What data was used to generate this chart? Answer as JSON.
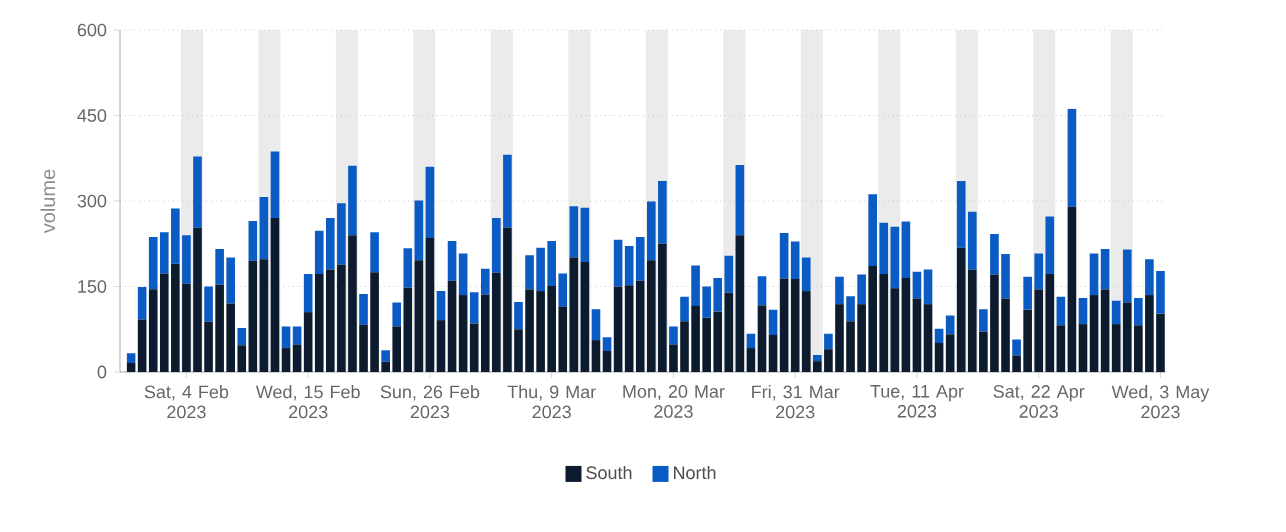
{
  "chart_data": {
    "type": "bar",
    "stacked": true,
    "ylabel": "volume",
    "x": [
      "2023-01-30",
      "2023-01-31",
      "2023-02-01",
      "2023-02-02",
      "2023-02-03",
      "2023-02-04",
      "2023-02-05",
      "2023-02-06",
      "2023-02-07",
      "2023-02-08",
      "2023-02-09",
      "2023-02-10",
      "2023-02-11",
      "2023-02-12",
      "2023-02-13",
      "2023-02-14",
      "2023-02-15",
      "2023-02-16",
      "2023-02-17",
      "2023-02-18",
      "2023-02-19",
      "2023-02-20",
      "2023-02-21",
      "2023-02-22",
      "2023-02-23",
      "2023-02-24",
      "2023-02-25",
      "2023-02-26",
      "2023-02-27",
      "2023-02-28",
      "2023-03-01",
      "2023-03-02",
      "2023-03-03",
      "2023-03-04",
      "2023-03-05",
      "2023-03-06",
      "2023-03-07",
      "2023-03-08",
      "2023-03-09",
      "2023-03-10",
      "2023-03-11",
      "2023-03-12",
      "2023-03-13",
      "2023-03-14",
      "2023-03-15",
      "2023-03-16",
      "2023-03-17",
      "2023-03-18",
      "2023-03-19",
      "2023-03-20",
      "2023-03-21",
      "2023-03-22",
      "2023-03-23",
      "2023-03-24",
      "2023-03-25",
      "2023-03-26",
      "2023-03-27",
      "2023-03-28",
      "2023-03-29",
      "2023-03-30",
      "2023-03-31",
      "2023-04-01",
      "2023-04-02",
      "2023-04-03",
      "2023-04-04",
      "2023-04-05",
      "2023-04-06",
      "2023-04-07",
      "2023-04-08",
      "2023-04-09",
      "2023-04-10",
      "2023-04-11",
      "2023-04-12",
      "2023-04-13",
      "2023-04-14",
      "2023-04-15",
      "2023-04-16",
      "2023-04-17",
      "2023-04-18",
      "2023-04-19",
      "2023-04-20",
      "2023-04-21",
      "2023-04-22",
      "2023-04-23",
      "2023-04-24",
      "2023-04-25",
      "2023-04-26",
      "2023-04-27",
      "2023-04-28",
      "2023-04-29",
      "2023-04-30",
      "2023-05-01",
      "2023-05-02",
      "2023-05-03"
    ],
    "series": [
      {
        "name": "South",
        "color": "#0d1b2e",
        "values": [
          16,
          92,
          145,
          173,
          190,
          155,
          253,
          88,
          153,
          120,
          47,
          195,
          198,
          270,
          42,
          48,
          105,
          172,
          180,
          188,
          240,
          83,
          175,
          18,
          80,
          148,
          196,
          235,
          91,
          160,
          135,
          85,
          136,
          174,
          253,
          75,
          145,
          142,
          151,
          115,
          201,
          193,
          56,
          37,
          150,
          152,
          160,
          196,
          225,
          48,
          89,
          116,
          95,
          106,
          139,
          240,
          42,
          117,
          65,
          164,
          163,
          142,
          19,
          40,
          119,
          89,
          119,
          186,
          172,
          147,
          165,
          129,
          119,
          51,
          66,
          218,
          180,
          71,
          171,
          129,
          29,
          109,
          145,
          172,
          82,
          290,
          84,
          135,
          145,
          84,
          122,
          82,
          135,
          102
        ]
      },
      {
        "name": "North",
        "color": "#0a5bc4",
        "values": [
          17,
          57,
          92,
          72,
          97,
          85,
          125,
          62,
          63,
          81,
          30,
          70,
          109,
          117,
          38,
          32,
          67,
          76,
          90,
          108,
          122,
          54,
          70,
          20,
          42,
          69,
          105,
          125,
          51,
          70,
          73,
          55,
          45,
          96,
          128,
          48,
          60,
          76,
          79,
          58,
          90,
          95,
          54,
          24,
          82,
          69,
          77,
          103,
          110,
          32,
          43,
          71,
          55,
          59,
          65,
          123,
          25,
          51,
          44,
          80,
          66,
          59,
          11,
          27,
          48,
          44,
          52,
          126,
          90,
          108,
          99,
          47,
          61,
          25,
          33,
          117,
          101,
          39,
          71,
          78,
          28,
          58,
          63,
          101,
          50,
          172,
          46,
          73,
          71,
          41,
          93,
          48,
          63,
          75
        ]
      }
    ],
    "xlim": [
      "2023-01-29",
      "2023-05-03T12:00"
    ],
    "xticks": [
      {
        "value": "2023-02-04",
        "label": "Sat, 4 Feb\n2023"
      },
      {
        "value": "2023-02-15",
        "label": "Wed, 15 Feb\n2023"
      },
      {
        "value": "2023-02-26",
        "label": "Sun, 26 Feb\n2023"
      },
      {
        "value": "2023-03-09",
        "label": "Thu, 9 Mar\n2023"
      },
      {
        "value": "2023-03-20",
        "label": "Mon, 20 Mar\n2023"
      },
      {
        "value": "2023-03-31",
        "label": "Fri, 31 Mar\n2023"
      },
      {
        "value": "2023-04-11",
        "label": "Tue, 11 Apr\n2023"
      },
      {
        "value": "2023-04-22",
        "label": "Sat, 22 Apr\n2023"
      },
      {
        "value": "2023-05-03",
        "label": "Wed, 3 May\n2023"
      }
    ],
    "ylim": [
      0,
      600
    ],
    "yticks": [
      0,
      150,
      300,
      450,
      600
    ],
    "grid": "y",
    "legend": "bottom",
    "bands": [
      {
        "axis": "x",
        "from": "2023-02-03T12:00",
        "to": "2023-02-05T12:00",
        "color": "#ebebeb"
      },
      {
        "axis": "x",
        "from": "2023-02-10T12:00",
        "to": "2023-02-12T12:00",
        "color": "#ebebeb"
      },
      {
        "axis": "x",
        "from": "2023-02-17T12:00",
        "to": "2023-02-19T12:00",
        "color": "#ebebeb"
      },
      {
        "axis": "x",
        "from": "2023-02-24T12:00",
        "to": "2023-02-26T12:00",
        "color": "#ebebeb"
      },
      {
        "axis": "x",
        "from": "2023-03-03T12:00",
        "to": "2023-03-05T12:00",
        "color": "#ebebeb"
      },
      {
        "axis": "x",
        "from": "2023-03-10T12:00",
        "to": "2023-03-12T12:00",
        "color": "#ebebeb"
      },
      {
        "axis": "x",
        "from": "2023-03-17T12:00",
        "to": "2023-03-19T12:00",
        "color": "#ebebeb"
      },
      {
        "axis": "x",
        "from": "2023-03-24T12:00",
        "to": "2023-03-26T12:00",
        "color": "#ebebeb"
      },
      {
        "axis": "x",
        "from": "2023-03-31T12:00",
        "to": "2023-04-02T12:00",
        "color": "#ebebeb"
      },
      {
        "axis": "x",
        "from": "2023-04-07T12:00",
        "to": "2023-04-09T12:00",
        "color": "#ebebeb"
      },
      {
        "axis": "x",
        "from": "2023-04-14T12:00",
        "to": "2023-04-16T12:00",
        "color": "#ebebeb"
      },
      {
        "axis": "x",
        "from": "2023-04-21T12:00",
        "to": "2023-04-23T12:00",
        "color": "#ebebeb"
      },
      {
        "axis": "x",
        "from": "2023-04-28T12:00",
        "to": "2023-04-30T12:00",
        "color": "#ebebeb"
      }
    ]
  }
}
